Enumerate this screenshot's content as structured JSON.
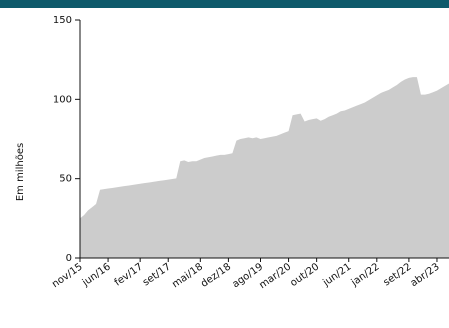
{
  "chart_data": {
    "type": "area",
    "y_label": "Em milhões",
    "color": "#cccccc",
    "categories": [
      "nov/15",
      null,
      null,
      null,
      null,
      null,
      null,
      "jun/16",
      null,
      null,
      null,
      null,
      null,
      null,
      null,
      "fev/17",
      null,
      null,
      null,
      null,
      null,
      null,
      "set/17",
      null,
      null,
      null,
      null,
      null,
      null,
      null,
      "mai/18",
      null,
      null,
      null,
      null,
      null,
      null,
      "dez/18",
      null,
      null,
      null,
      null,
      null,
      null,
      null,
      "ago/19",
      null,
      null,
      null,
      null,
      null,
      null,
      "mar/20",
      null,
      null,
      null,
      null,
      null,
      null,
      "out/20",
      null,
      null,
      null,
      null,
      null,
      null,
      null,
      "jun/21",
      null,
      null,
      null,
      null,
      null,
      null,
      "jan/22",
      null,
      null,
      null,
      null,
      null,
      null,
      null,
      "set/22",
      null,
      null,
      null,
      null,
      null,
      null,
      "abr/23",
      null,
      null,
      null
    ],
    "values": [
      25,
      27,
      30,
      32,
      34,
      43,
      43.4,
      43.8,
      44.1,
      44.5,
      44.9,
      45.3,
      45.6,
      46,
      46.4,
      46.8,
      47.2,
      47.5,
      47.9,
      48.3,
      48.7,
      49,
      49.4,
      49.8,
      50.2,
      61,
      61.5,
      60.5,
      61,
      61,
      62,
      63,
      63.5,
      64,
      64.5,
      65,
      65,
      65.5,
      66,
      74,
      75,
      75.5,
      76,
      75.5,
      76,
      75,
      75.5,
      76,
      76.5,
      77,
      78,
      79,
      80,
      90,
      90.5,
      91,
      86,
      87,
      87.5,
      88,
      86.5,
      87.5,
      89,
      90,
      91,
      92.5,
      93,
      94,
      95,
      96,
      97,
      98,
      99.5,
      101,
      102.5,
      104,
      105,
      106,
      107.5,
      109,
      111,
      112.5,
      113.5,
      114,
      114,
      103,
      103,
      103.5,
      104.5,
      105.5,
      107,
      108.5,
      110
    ],
    "ylim": [
      0,
      150
    ],
    "yticks": [
      0,
      50,
      100,
      150
    ]
  }
}
